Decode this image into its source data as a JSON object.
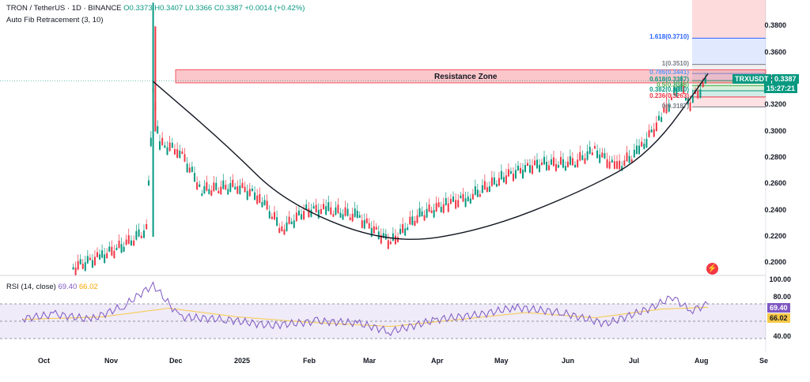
{
  "header": {
    "symbol": "TRON / TetherUS · 1D · BINANCE",
    "open": "O0.3373",
    "high": "H0.3407",
    "low": "L0.3366",
    "close": "C0.3387",
    "change": "+0.0014 (+0.42%)",
    "indicator": "Auto Fib Retracement (3, 10)"
  },
  "price_tag": {
    "ticker": "TRXUSDT",
    "price": "0.3387",
    "countdown": "15:27:21"
  },
  "resistance_label": "Resistance Zone",
  "fib_levels": [
    {
      "label": "1.618(0.3710)",
      "value": 0.371,
      "color": "#2962ff"
    },
    {
      "label": "1(0.3510)",
      "value": 0.351,
      "color": "#787b86"
    },
    {
      "label": "0.786(0.3441)",
      "value": 0.3441,
      "color": "#5b9cf6"
    },
    {
      "label": "0.618(0.3387)",
      "value": 0.3387,
      "color": "#089981"
    },
    {
      "label": "0.5(0.3348)",
      "value": 0.3348,
      "color": "#4caf50"
    },
    {
      "label": "0.382(0.3310)",
      "value": 0.331,
      "color": "#089981"
    },
    {
      "label": "0.236(0.3263)",
      "value": 0.3263,
      "color": "#f23645"
    },
    {
      "label": "0(0.3187)",
      "value": 0.3187,
      "color": "#787b86"
    }
  ],
  "rsi": {
    "title": "RSI (14, close)",
    "value": "69.40",
    "ma": "66.02",
    "axis": [
      "100.00",
      "80.00",
      "40.00"
    ],
    "line_color": "#7e57c2",
    "ma_color": "#f7c948"
  },
  "chart_data": {
    "type": "candlestick",
    "symbol": "TRXUSDT",
    "interval": "1D",
    "ylim": [
      0.19,
      0.4
    ],
    "y_ticks": [
      "0.3800",
      "0.3600",
      "0.3400",
      "0.3200",
      "0.3000",
      "0.2800",
      "0.2600",
      "0.2400",
      "0.2200",
      "0.2000"
    ],
    "x_ticks": [
      "Oct",
      "Nov",
      "Dec",
      "2025",
      "Feb",
      "Mar",
      "Apr",
      "May",
      "Jun",
      "Jul",
      "Aug",
      "Se"
    ],
    "resistance_zone": [
      0.337,
      0.347
    ],
    "approx_price_path": [
      {
        "x": "2024-10-28",
        "y": 0.196
      },
      {
        "x": "2024-11-10",
        "y": 0.205
      },
      {
        "x": "2024-11-22",
        "y": 0.215
      },
      {
        "x": "2024-11-30",
        "y": 0.225
      },
      {
        "x": "2024-12-03",
        "y": 0.33
      },
      {
        "x": "2024-12-06",
        "y": 0.29
      },
      {
        "x": "2024-12-15",
        "y": 0.285
      },
      {
        "x": "2024-12-25",
        "y": 0.255
      },
      {
        "x": "2025-01-10",
        "y": 0.258
      },
      {
        "x": "2025-01-20",
        "y": 0.25
      },
      {
        "x": "2025-01-30",
        "y": 0.225
      },
      {
        "x": "2025-02-10",
        "y": 0.24
      },
      {
        "x": "2025-02-20",
        "y": 0.24
      },
      {
        "x": "2025-03-05",
        "y": 0.235
      },
      {
        "x": "2025-03-20",
        "y": 0.215
      },
      {
        "x": "2025-04-01",
        "y": 0.235
      },
      {
        "x": "2025-04-15",
        "y": 0.245
      },
      {
        "x": "2025-04-25",
        "y": 0.25
      },
      {
        "x": "2025-05-10",
        "y": 0.265
      },
      {
        "x": "2025-05-25",
        "y": 0.275
      },
      {
        "x": "2025-06-10",
        "y": 0.275
      },
      {
        "x": "2025-06-20",
        "y": 0.285
      },
      {
        "x": "2025-06-30",
        "y": 0.272
      },
      {
        "x": "2025-07-10",
        "y": 0.285
      },
      {
        "x": "2025-07-20",
        "y": 0.31
      },
      {
        "x": "2025-07-28",
        "y": 0.335
      },
      {
        "x": "2025-08-02",
        "y": 0.322
      },
      {
        "x": "2025-08-10",
        "y": 0.3387
      }
    ],
    "cup_curve": [
      {
        "x": "2024-12-03",
        "y": 0.338
      },
      {
        "x": "2025-01-05",
        "y": 0.29
      },
      {
        "x": "2025-02-01",
        "y": 0.245
      },
      {
        "x": "2025-03-20",
        "y": 0.214
      },
      {
        "x": "2025-05-01",
        "y": 0.225
      },
      {
        "x": "2025-06-15",
        "y": 0.255
      },
      {
        "x": "2025-07-15",
        "y": 0.283
      },
      {
        "x": "2025-08-10",
        "y": 0.344
      }
    ],
    "rsi_ylim": [
      20,
      100
    ],
    "rsi_overbought": 70,
    "rsi_oversold": 30,
    "rsi_path": [
      {
        "x": "2024-10-05",
        "y": 53
      },
      {
        "x": "2024-10-20",
        "y": 58
      },
      {
        "x": "2024-11-05",
        "y": 52
      },
      {
        "x": "2024-11-20",
        "y": 68
      },
      {
        "x": "2024-12-03",
        "y": 92
      },
      {
        "x": "2024-12-15",
        "y": 55
      },
      {
        "x": "2025-01-05",
        "y": 52
      },
      {
        "x": "2025-01-25",
        "y": 45
      },
      {
        "x": "2025-02-15",
        "y": 50
      },
      {
        "x": "2025-03-05",
        "y": 48
      },
      {
        "x": "2025-03-20",
        "y": 38
      },
      {
        "x": "2025-04-10",
        "y": 52
      },
      {
        "x": "2025-04-30",
        "y": 58
      },
      {
        "x": "2025-05-15",
        "y": 66
      },
      {
        "x": "2025-06-05",
        "y": 60
      },
      {
        "x": "2025-06-25",
        "y": 47
      },
      {
        "x": "2025-07-15",
        "y": 65
      },
      {
        "x": "2025-07-25",
        "y": 78
      },
      {
        "x": "2025-08-02",
        "y": 62
      },
      {
        "x": "2025-08-10",
        "y": 69.4
      }
    ],
    "rsi_ma_path": [
      {
        "x": "2024-10-05",
        "y": 52
      },
      {
        "x": "2024-11-10",
        "y": 55
      },
      {
        "x": "2024-12-10",
        "y": 65
      },
      {
        "x": "2025-01-10",
        "y": 55
      },
      {
        "x": "2025-02-10",
        "y": 49
      },
      {
        "x": "2025-03-20",
        "y": 44
      },
      {
        "x": "2025-04-20",
        "y": 52
      },
      {
        "x": "2025-05-20",
        "y": 60
      },
      {
        "x": "2025-06-20",
        "y": 54
      },
      {
        "x": "2025-07-20",
        "y": 64
      },
      {
        "x": "2025-08-10",
        "y": 66.02
      }
    ]
  }
}
